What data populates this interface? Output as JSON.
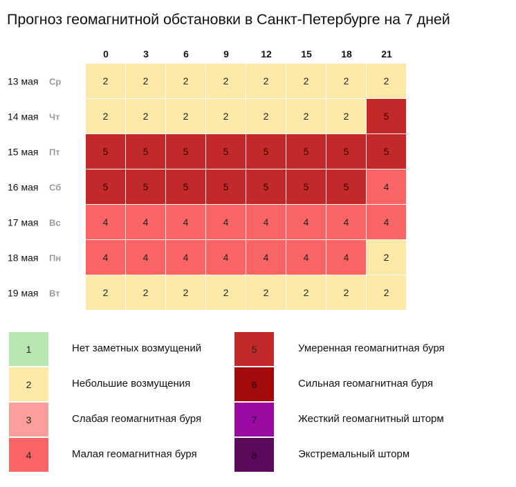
{
  "title": "Прогноз геомагнитной обстановки в Санкт-Петербурге на 7 дней",
  "chart_data": {
    "type": "heatmap",
    "x": [
      "0",
      "3",
      "6",
      "9",
      "12",
      "15",
      "18",
      "21"
    ],
    "rows": [
      {
        "date": "13 мая",
        "weekday": "Ср",
        "values": [
          2,
          2,
          2,
          2,
          2,
          2,
          2,
          2
        ]
      },
      {
        "date": "14 мая",
        "weekday": "Чт",
        "values": [
          2,
          2,
          2,
          2,
          2,
          2,
          2,
          5
        ]
      },
      {
        "date": "15 мая",
        "weekday": "Пт",
        "values": [
          5,
          5,
          5,
          5,
          5,
          5,
          5,
          5
        ]
      },
      {
        "date": "16 мая",
        "weekday": "Сб",
        "values": [
          5,
          5,
          5,
          5,
          5,
          5,
          5,
          4
        ]
      },
      {
        "date": "17 мая",
        "weekday": "Вс",
        "values": [
          4,
          4,
          4,
          4,
          4,
          4,
          4,
          4
        ]
      },
      {
        "date": "18 мая",
        "weekday": "Пн",
        "values": [
          4,
          4,
          4,
          4,
          4,
          4,
          4,
          2
        ]
      },
      {
        "date": "19 мая",
        "weekday": "Вт",
        "values": [
          2,
          2,
          2,
          2,
          2,
          2,
          2,
          2
        ]
      }
    ],
    "legend": [
      {
        "level": "1",
        "label": "Нет заметных возмущений",
        "color": "#b8e6b0"
      },
      {
        "level": "2",
        "label": "Небольшие возмущения",
        "color": "#fde9a8"
      },
      {
        "level": "3",
        "label": "Слабая геомагнитная буря",
        "color": "#fb9e9a"
      },
      {
        "level": "4",
        "label": "Малая геомагнитная буря",
        "color": "#f96464"
      },
      {
        "level": "5",
        "label": "Умеренная геомагнитная буря",
        "color": "#c22a2a"
      },
      {
        "level": "6",
        "label": "Сильная геомагнитная буря",
        "color": "#a30b0b"
      },
      {
        "level": "7",
        "label": "Жесткий геомагнитный шторм",
        "color": "#990aa3"
      },
      {
        "level": "8",
        "label": "Экстремальный шторм",
        "color": "#5a0a5a"
      }
    ],
    "colors": {
      "1": "#b8e6b0",
      "2": "#fde9a8",
      "3": "#fb9e9a",
      "4": "#f96464",
      "5": "#c22a2a",
      "6": "#a30b0b",
      "7": "#990aa3",
      "8": "#5a0a5a"
    }
  }
}
